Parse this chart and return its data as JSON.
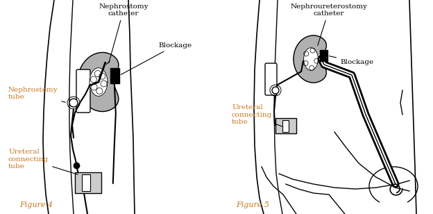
{
  "bg_color": "#ffffff",
  "label_color": "#c87820",
  "black": "#000000",
  "gray": "#999999",
  "light_gray": "#cccccc",
  "dark_gray": "#555555",
  "kidney_fill": "#b0b0b0",
  "fig4_label": "Figure 4",
  "fig5_label": "Figure 5",
  "nephrostomy_catheter": "Nephrostomy\ncatheter",
  "nephrostomy_tube": "Nephrostomy\ntube",
  "blockage1": "Blockage",
  "ureteral1": "Ureteral\nconnecting\ntube",
  "nephroureterostomy": "Nephroureterostomy\ncatheter",
  "blockage2": "Blockage",
  "ureteral2": "Ureteral\nconnecting\ntube"
}
